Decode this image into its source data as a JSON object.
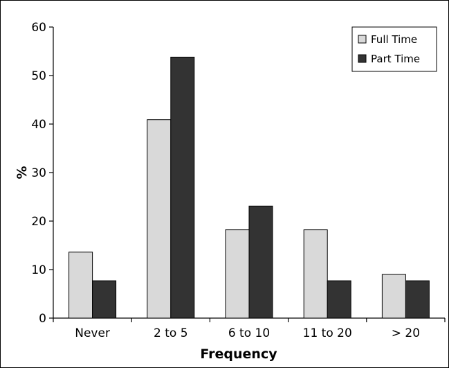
{
  "chart_data": {
    "type": "bar",
    "title": "",
    "xlabel": "Frequency",
    "ylabel": "%",
    "ylim": [
      0,
      60
    ],
    "yticks": [
      0,
      10,
      20,
      30,
      40,
      50,
      60
    ],
    "categories": [
      "Never",
      "2 to 5",
      "6 to 10",
      "11 to 20",
      "> 20"
    ],
    "series": [
      {
        "name": "Full Time",
        "values": [
          13.6,
          40.9,
          18.2,
          18.2,
          9.0
        ],
        "color": "#d9d9d9"
      },
      {
        "name": "Part Time",
        "values": [
          7.7,
          53.8,
          23.1,
          7.7,
          7.7
        ],
        "color": "#333333"
      }
    ],
    "legend_position": "top-right",
    "grid": false
  }
}
